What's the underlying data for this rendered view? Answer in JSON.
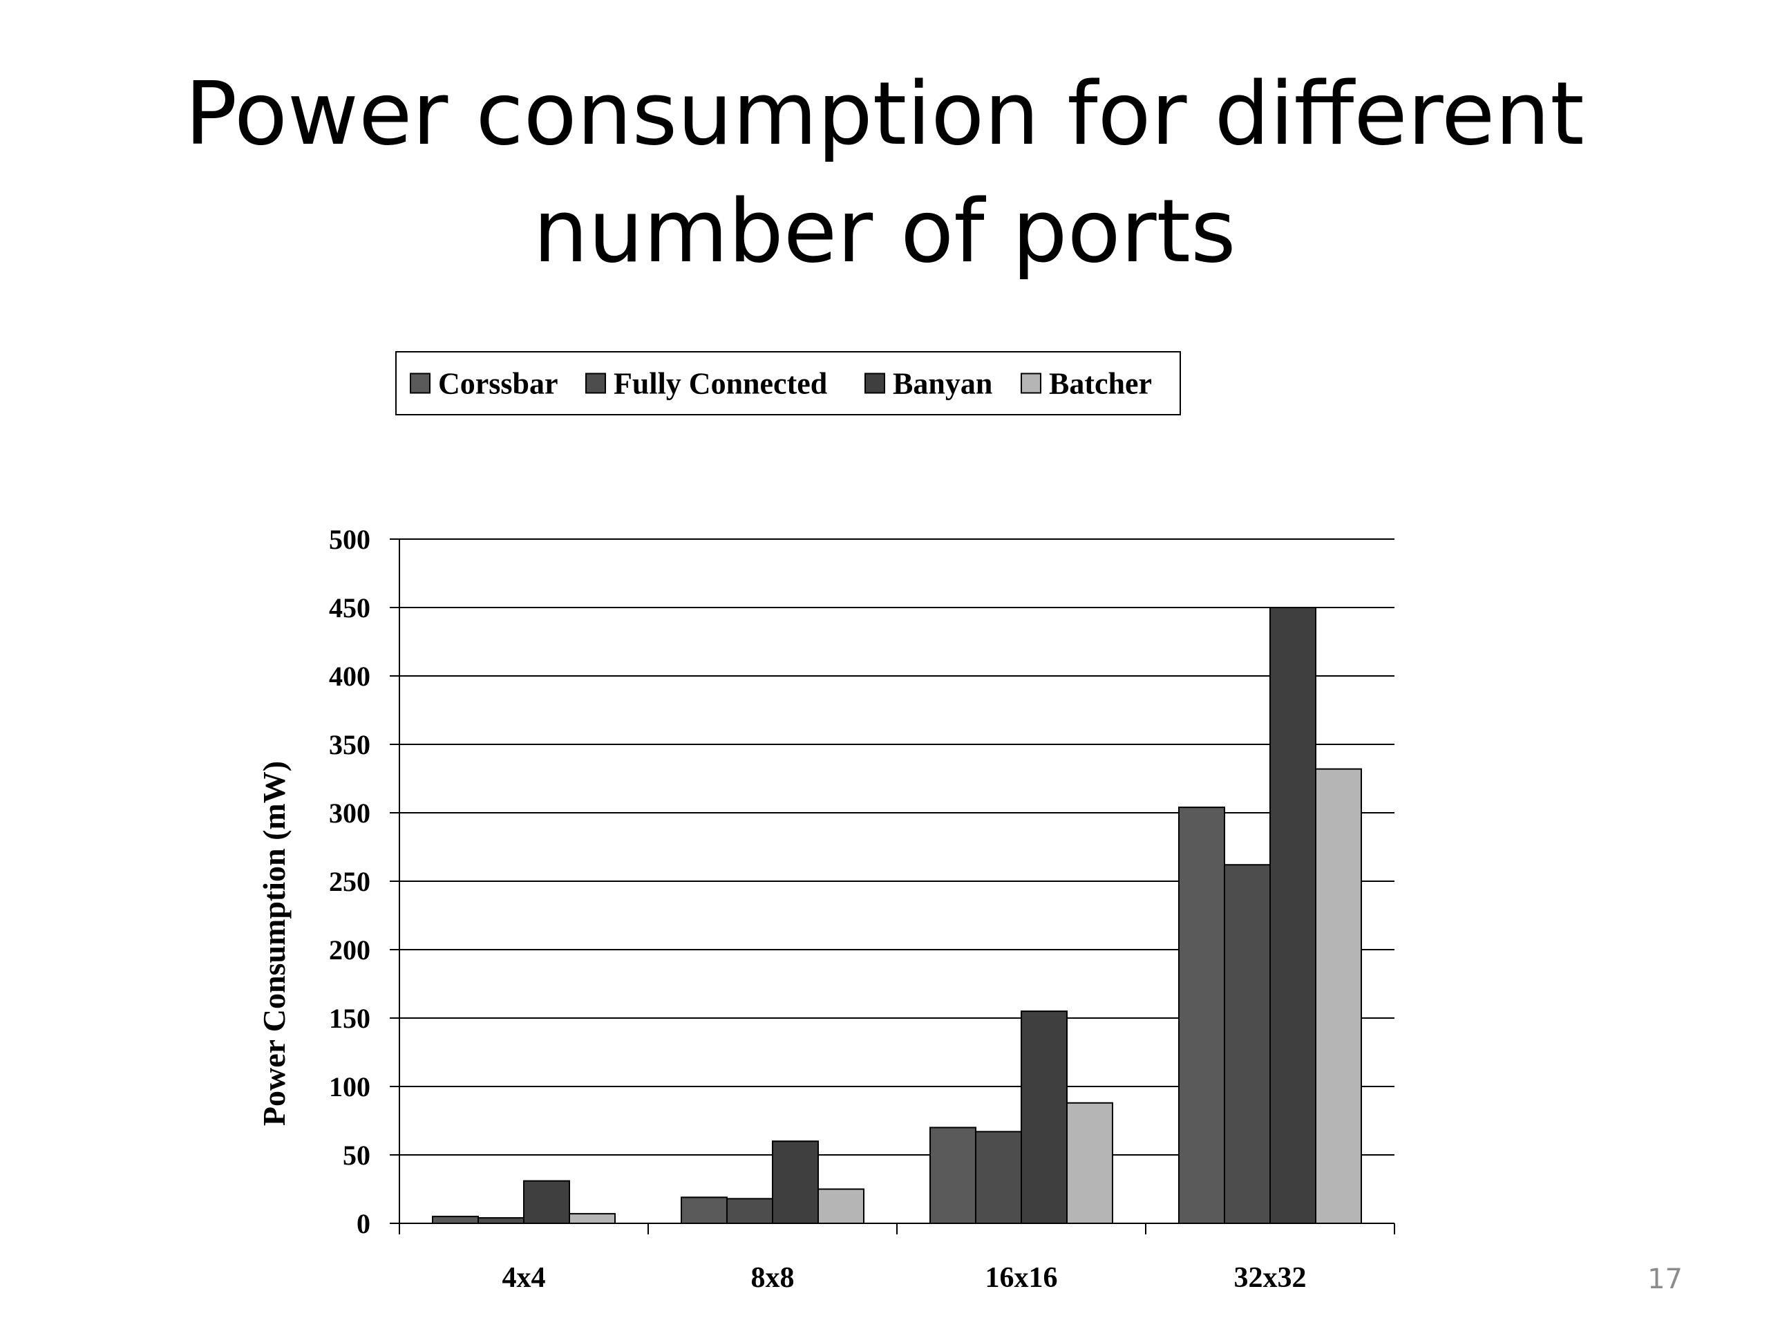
{
  "slide": {
    "title_line1": "Power consumption for different",
    "title_line2": "number of ports",
    "page_number": "17"
  },
  "chart_data": {
    "type": "bar",
    "title": "",
    "xlabel": "",
    "ylabel": "Power Consumption (mW)",
    "categories": [
      "4x4",
      "8x8",
      "16x16",
      "32x32"
    ],
    "ylim": [
      0,
      500
    ],
    "yticks": [
      0,
      50,
      100,
      150,
      200,
      250,
      300,
      350,
      400,
      450,
      500
    ],
    "grid": true,
    "legend_position": "top",
    "series": [
      {
        "name": "Corssbar",
        "values": [
          5,
          19,
          70,
          304
        ],
        "color": "#5a5a5a"
      },
      {
        "name": "Fully Connected",
        "values": [
          4,
          18,
          67,
          262
        ],
        "color": "#4d4d4d"
      },
      {
        "name": "Banyan",
        "values": [
          31,
          60,
          155,
          450
        ],
        "color": "#3f3f3f"
      },
      {
        "name": "Batcher",
        "values": [
          7,
          25,
          88,
          332
        ],
        "color": "#b5b5b5"
      }
    ]
  }
}
